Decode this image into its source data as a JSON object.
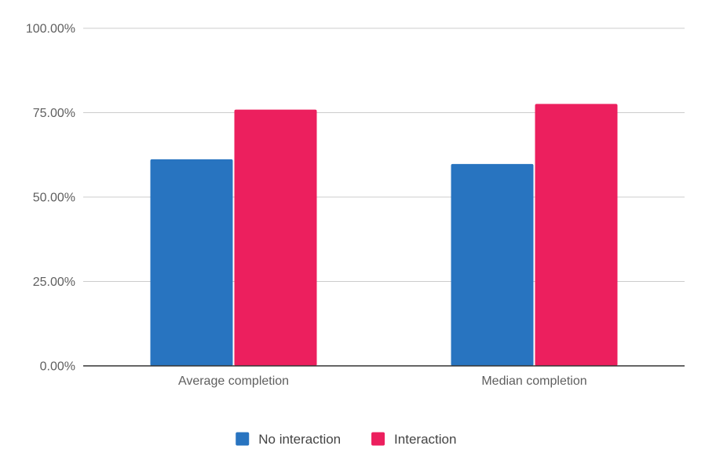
{
  "chart_data": {
    "type": "bar",
    "categories": [
      "Average completion",
      "Median completion"
    ],
    "series": [
      {
        "name": "No interaction",
        "values": [
          61.2,
          59.8
        ],
        "color": "#2874c0"
      },
      {
        "name": "Interaction",
        "values": [
          75.9,
          77.6
        ],
        "color": "#ec1f5e"
      }
    ],
    "y_ticks": [
      "0.00%",
      "25.00%",
      "50.00%",
      "75.00%",
      "100.00%"
    ],
    "ylim": [
      0,
      100
    ],
    "grid": true,
    "legend_position": "bottom"
  }
}
